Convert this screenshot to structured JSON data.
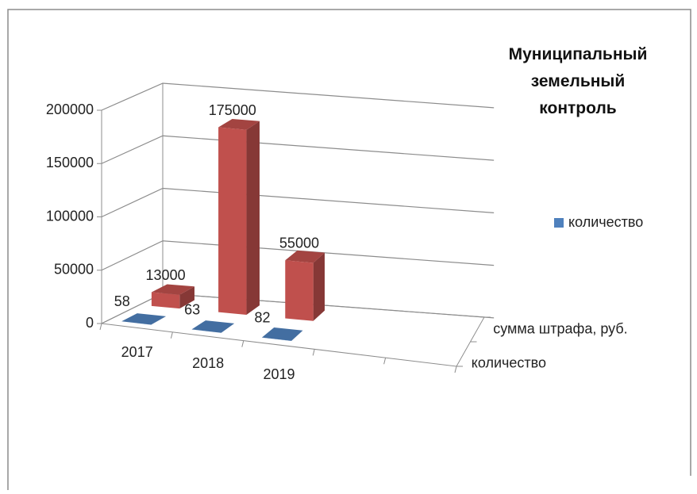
{
  "chart_data": {
    "type": "bar3d",
    "title": "Муниципальный земельный контроль",
    "categories": [
      "2017",
      "2018",
      "2019"
    ],
    "series": [
      {
        "name": "количество",
        "color": "#4f81bd",
        "values": [
          58,
          63,
          82
        ]
      },
      {
        "name": "сумма штрафа, руб.",
        "color": "#c0504d",
        "values": [
          13000,
          175000,
          55000
        ]
      }
    ],
    "ylim": [
      0,
      200000
    ],
    "yticks": [
      0,
      50000,
      100000,
      150000,
      200000
    ],
    "grid": true,
    "legend": "right",
    "legend_series": [
      0
    ]
  }
}
